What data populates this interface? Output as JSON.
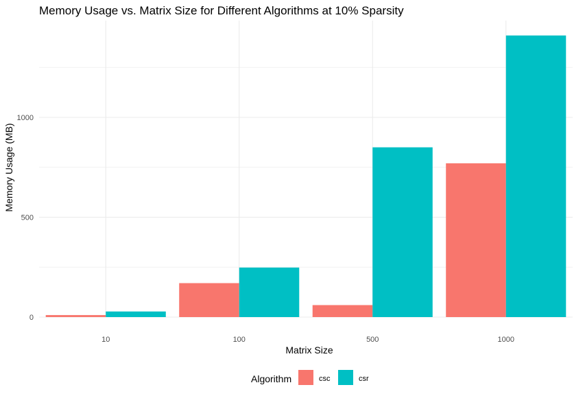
{
  "chart_data": {
    "type": "bar",
    "title": "Memory Usage vs. Matrix Size for Different Algorithms at 10% Sparsity",
    "xlabel": "Matrix Size",
    "ylabel": "Memory Usage (MB)",
    "categories": [
      "10",
      "100",
      "500",
      "1000"
    ],
    "series": [
      {
        "name": "csc",
        "color": "#F8766D",
        "values": [
          10,
          170,
          60,
          770
        ]
      },
      {
        "name": "csr",
        "color": "#00BFC4",
        "values": [
          28,
          248,
          850,
          1410
        ]
      }
    ],
    "ylim": [
      0,
      1450
    ],
    "yticks": [
      0,
      500,
      1000
    ],
    "grid": true,
    "legend": {
      "title": "Algorithm",
      "position": "bottom"
    }
  }
}
